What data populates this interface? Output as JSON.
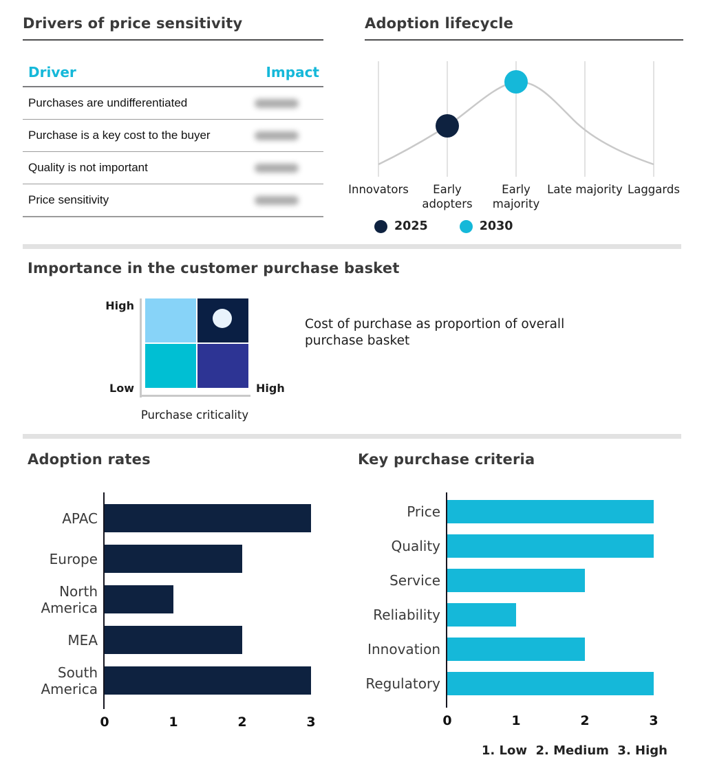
{
  "colors": {
    "accent_cyan": "#15b8d9",
    "navy": "#0e2240",
    "quad_top_left": "#87d3f8",
    "quad_top_right": "#0a1f44",
    "quad_bottom_left": "#00bfd3",
    "quad_bottom_right": "#2d3494",
    "matrix_marker": "#e9f3fc",
    "curve_gray": "#c9c9c9",
    "gridline_gray": "#d8d8d8"
  },
  "drivers_panel": {
    "title": "Drivers of price sensitivity",
    "col_driver": "Driver",
    "col_impact": "Impact",
    "rows": [
      "Purchases are undifferentiated",
      "Purchase is a key cost to the buyer",
      "Quality is not important",
      "Price sensitivity"
    ],
    "impact_values_redacted": true
  },
  "lifecycle_panel": {
    "title": "Adoption lifecycle"
  },
  "basket_panel": {
    "title": "Importance in the customer purchase basket",
    "y_axis_top": "High",
    "y_axis_bottom": "Low",
    "x_axis_right": "High",
    "x_axis_label": "Purchase criticality",
    "annotation": "Cost of purchase as proportion of overall purchase basket",
    "marker_quadrant": "top-right"
  },
  "adoption_rates_panel": {
    "title": "Adoption rates"
  },
  "criteria_panel": {
    "title": "Key purchase criteria",
    "scale_note": "1. Low  2. Medium  3. High"
  },
  "chart_data": [
    {
      "type": "line",
      "title": "Adoption lifecycle",
      "x": [
        "Innovators",
        "Early adopters",
        "Early majority",
        "Late majority",
        "Laggards"
      ],
      "curve": "bell-shaped diffusion curve, unlabeled y axis, gray",
      "series": [
        {
          "name": "2025",
          "marker_at": "Early adopters",
          "color": "#0e2240"
        },
        {
          "name": "2030",
          "marker_at": "Early majority",
          "color": "#15b8d9"
        }
      ],
      "legend_position": "bottom",
      "grid": "vertical gridlines at each stage"
    },
    {
      "type": "bar",
      "title": "Adoption rates",
      "orientation": "horizontal",
      "categories": [
        "APAC",
        "Europe",
        "North America",
        "MEA",
        "South America"
      ],
      "values": [
        3,
        2,
        1,
        2,
        3
      ],
      "xticks": [
        0,
        1,
        2,
        3
      ],
      "xlim": [
        0,
        3
      ],
      "bar_color": "#0e2240"
    },
    {
      "type": "bar",
      "title": "Key purchase criteria",
      "orientation": "horizontal",
      "categories": [
        "Price",
        "Quality",
        "Service",
        "Reliability",
        "Innovation",
        "Regulatory"
      ],
      "values": [
        3,
        3,
        2,
        1,
        2,
        3
      ],
      "xticks": [
        0,
        1,
        2,
        3
      ],
      "xlim": [
        0,
        3
      ],
      "bar_color": "#15b8d9",
      "scale_note": "1. Low  2. Medium  3. High"
    }
  ]
}
